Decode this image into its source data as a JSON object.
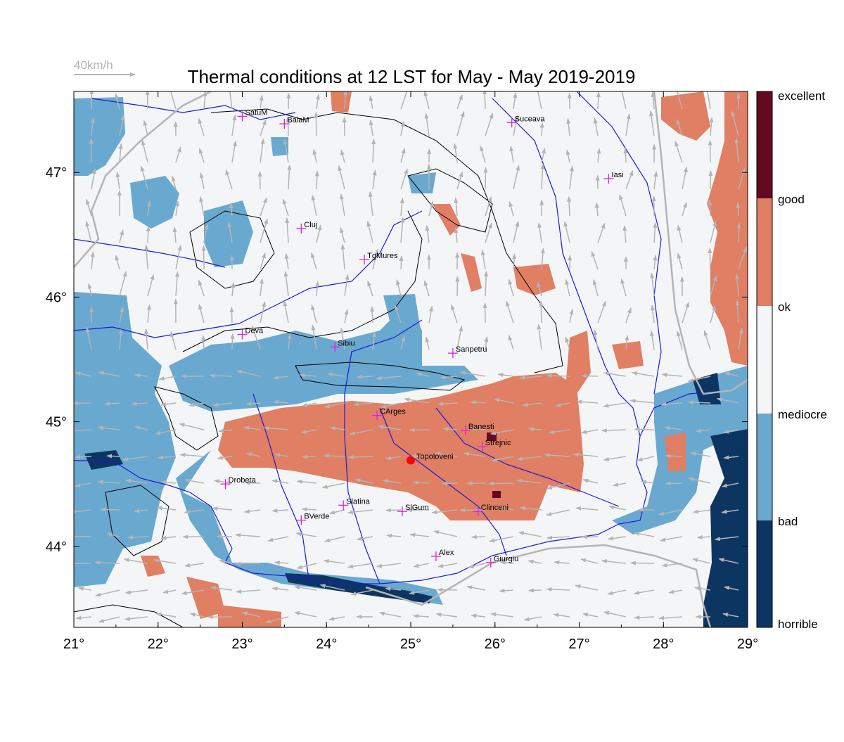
{
  "title": "Thermal conditions at 12 LST for May - May  2019-2019",
  "wind_scale_label": "40km/h",
  "x_ticks": [
    "21°",
    "22°",
    "23°",
    "24°",
    "25°",
    "26°",
    "27°",
    "28°",
    "29°"
  ],
  "y_ticks": [
    "44°",
    "45°",
    "46°",
    "47°"
  ],
  "lon_range": [
    21,
    29
  ],
  "lat_range": [
    43.35,
    47.65
  ],
  "colorbar_labels": [
    "excellent",
    "good",
    "ok",
    "mediocre",
    "bad",
    "horrible"
  ],
  "colors": {
    "horrible": "#0d3562",
    "bad": "#6aa9cf",
    "mediocre": "#f4f5f6",
    "ok": "#f4f5f6",
    "good": "#e07f63",
    "excellent": "#640a20",
    "contour": "#000000",
    "river": "#1a1adc",
    "border": "#b4b4b4",
    "wind_arrow": "#b4b4b4",
    "station_marker": "#e020e0",
    "site_marker": "#ff0000"
  },
  "site": {
    "name": "Topoloveni",
    "lon": 25.0,
    "lat": 44.69
  },
  "stations": [
    {
      "name": "SatuM",
      "lon": 23.0,
      "lat": 47.45
    },
    {
      "name": "BaiaM",
      "lon": 23.5,
      "lat": 47.39
    },
    {
      "name": "Suceava",
      "lon": 26.2,
      "lat": 47.4
    },
    {
      "name": "Iasi",
      "lon": 27.35,
      "lat": 46.95
    },
    {
      "name": "Cluj",
      "lon": 23.7,
      "lat": 46.55
    },
    {
      "name": "TgMures",
      "lon": 24.45,
      "lat": 46.3
    },
    {
      "name": "Deva",
      "lon": 23.0,
      "lat": 45.7
    },
    {
      "name": "Sibiu",
      "lon": 24.1,
      "lat": 45.6
    },
    {
      "name": "Sanpetru",
      "lon": 25.5,
      "lat": 45.55
    },
    {
      "name": "CArges",
      "lon": 24.6,
      "lat": 45.05
    },
    {
      "name": "Banesti",
      "lon": 25.65,
      "lat": 44.93
    },
    {
      "name": "Strejnic",
      "lon": 25.85,
      "lat": 44.8
    },
    {
      "name": "Drobeta",
      "lon": 22.8,
      "lat": 44.5
    },
    {
      "name": "Slatina",
      "lon": 24.2,
      "lat": 44.33
    },
    {
      "name": "SlGum",
      "lon": 24.9,
      "lat": 44.28
    },
    {
      "name": "Clinceni",
      "lon": 25.8,
      "lat": 44.28
    },
    {
      "name": "BVerde",
      "lon": 23.7,
      "lat": 44.21
    },
    {
      "name": "Alex",
      "lon": 25.3,
      "lat": 43.92
    },
    {
      "name": "Giurgiu",
      "lon": 25.95,
      "lat": 43.87
    }
  ]
}
